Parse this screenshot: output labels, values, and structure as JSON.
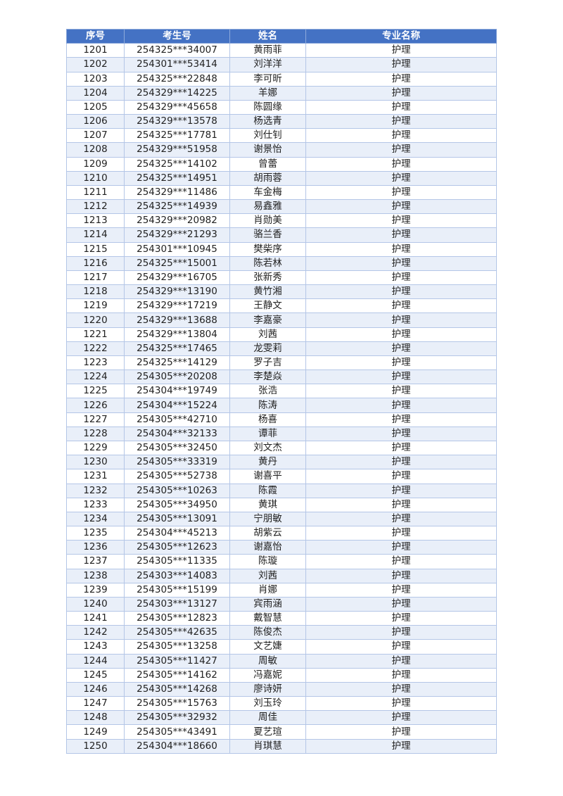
{
  "table": {
    "headers": [
      "序号",
      "考生号",
      "姓名",
      "专业名称"
    ],
    "rows": [
      [
        "1201",
        "254325***34007",
        "黄雨菲",
        "护理"
      ],
      [
        "1202",
        "254301***53414",
        "刘洋洋",
        "护理"
      ],
      [
        "1203",
        "254325***22848",
        "李可昕",
        "护理"
      ],
      [
        "1204",
        "254329***14225",
        "羊娜",
        "护理"
      ],
      [
        "1205",
        "254329***45658",
        "陈圆缘",
        "护理"
      ],
      [
        "1206",
        "254329***13578",
        "杨选青",
        "护理"
      ],
      [
        "1207",
        "254325***17781",
        "刘仕钊",
        "护理"
      ],
      [
        "1208",
        "254329***51958",
        "谢景怡",
        "护理"
      ],
      [
        "1209",
        "254325***14102",
        "曾蕾",
        "护理"
      ],
      [
        "1210",
        "254325***14951",
        "胡雨蓉",
        "护理"
      ],
      [
        "1211",
        "254329***11486",
        "车金梅",
        "护理"
      ],
      [
        "1212",
        "254325***14939",
        "易鑫雅",
        "护理"
      ],
      [
        "1213",
        "254329***20982",
        "肖勋美",
        "护理"
      ],
      [
        "1214",
        "254329***21293",
        "骆兰香",
        "护理"
      ],
      [
        "1215",
        "254301***10945",
        "樊柴序",
        "护理"
      ],
      [
        "1216",
        "254325***15001",
        "陈若林",
        "护理"
      ],
      [
        "1217",
        "254329***16705",
        "张新秀",
        "护理"
      ],
      [
        "1218",
        "254329***13190",
        "黄竹湘",
        "护理"
      ],
      [
        "1219",
        "254329***17219",
        "王静文",
        "护理"
      ],
      [
        "1220",
        "254329***13688",
        "李嘉豪",
        "护理"
      ],
      [
        "1221",
        "254329***13804",
        "刘茜",
        "护理"
      ],
      [
        "1222",
        "254325***17465",
        "龙雯莉",
        "护理"
      ],
      [
        "1223",
        "254325***14129",
        "罗子吉",
        "护理"
      ],
      [
        "1224",
        "254305***20208",
        "李楚焱",
        "护理"
      ],
      [
        "1225",
        "254304***19749",
        "张浩",
        "护理"
      ],
      [
        "1226",
        "254304***15224",
        "陈涛",
        "护理"
      ],
      [
        "1227",
        "254305***42710",
        "杨喜",
        "护理"
      ],
      [
        "1228",
        "254304***32133",
        "谭菲",
        "护理"
      ],
      [
        "1229",
        "254305***32450",
        "刘文杰",
        "护理"
      ],
      [
        "1230",
        "254305***33319",
        "黄丹",
        "护理"
      ],
      [
        "1231",
        "254305***52738",
        "谢喜平",
        "护理"
      ],
      [
        "1232",
        "254305***10263",
        "陈霞",
        "护理"
      ],
      [
        "1233",
        "254305***34950",
        "黄琪",
        "护理"
      ],
      [
        "1234",
        "254305***13091",
        "宁朋敏",
        "护理"
      ],
      [
        "1235",
        "254304***45213",
        "胡紫云",
        "护理"
      ],
      [
        "1236",
        "254305***12623",
        "谢嘉怡",
        "护理"
      ],
      [
        "1237",
        "254305***11335",
        "陈璇",
        "护理"
      ],
      [
        "1238",
        "254303***14083",
        "刘茜",
        "护理"
      ],
      [
        "1239",
        "254305***15199",
        "肖娜",
        "护理"
      ],
      [
        "1240",
        "254303***13127",
        "宾雨涵",
        "护理"
      ],
      [
        "1241",
        "254305***12823",
        "戴智慧",
        "护理"
      ],
      [
        "1242",
        "254305***42635",
        "陈俊杰",
        "护理"
      ],
      [
        "1243",
        "254305***13258",
        "文艺婕",
        "护理"
      ],
      [
        "1244",
        "254305***11427",
        "周敏",
        "护理"
      ],
      [
        "1245",
        "254305***14162",
        "冯嘉妮",
        "护理"
      ],
      [
        "1246",
        "254305***14268",
        "廖诗妍",
        "护理"
      ],
      [
        "1247",
        "254305***15763",
        "刘玉玲",
        "护理"
      ],
      [
        "1248",
        "254305***32932",
        "周佳",
        "护理"
      ],
      [
        "1249",
        "254305***43491",
        "夏艺瑄",
        "护理"
      ],
      [
        "1250",
        "254304***18660",
        "肖琪慧",
        "护理"
      ]
    ]
  },
  "colors": {
    "header_bg": "#4472c4",
    "alt_row_bg": "#e9eff9",
    "border": "#b4c6e7"
  }
}
